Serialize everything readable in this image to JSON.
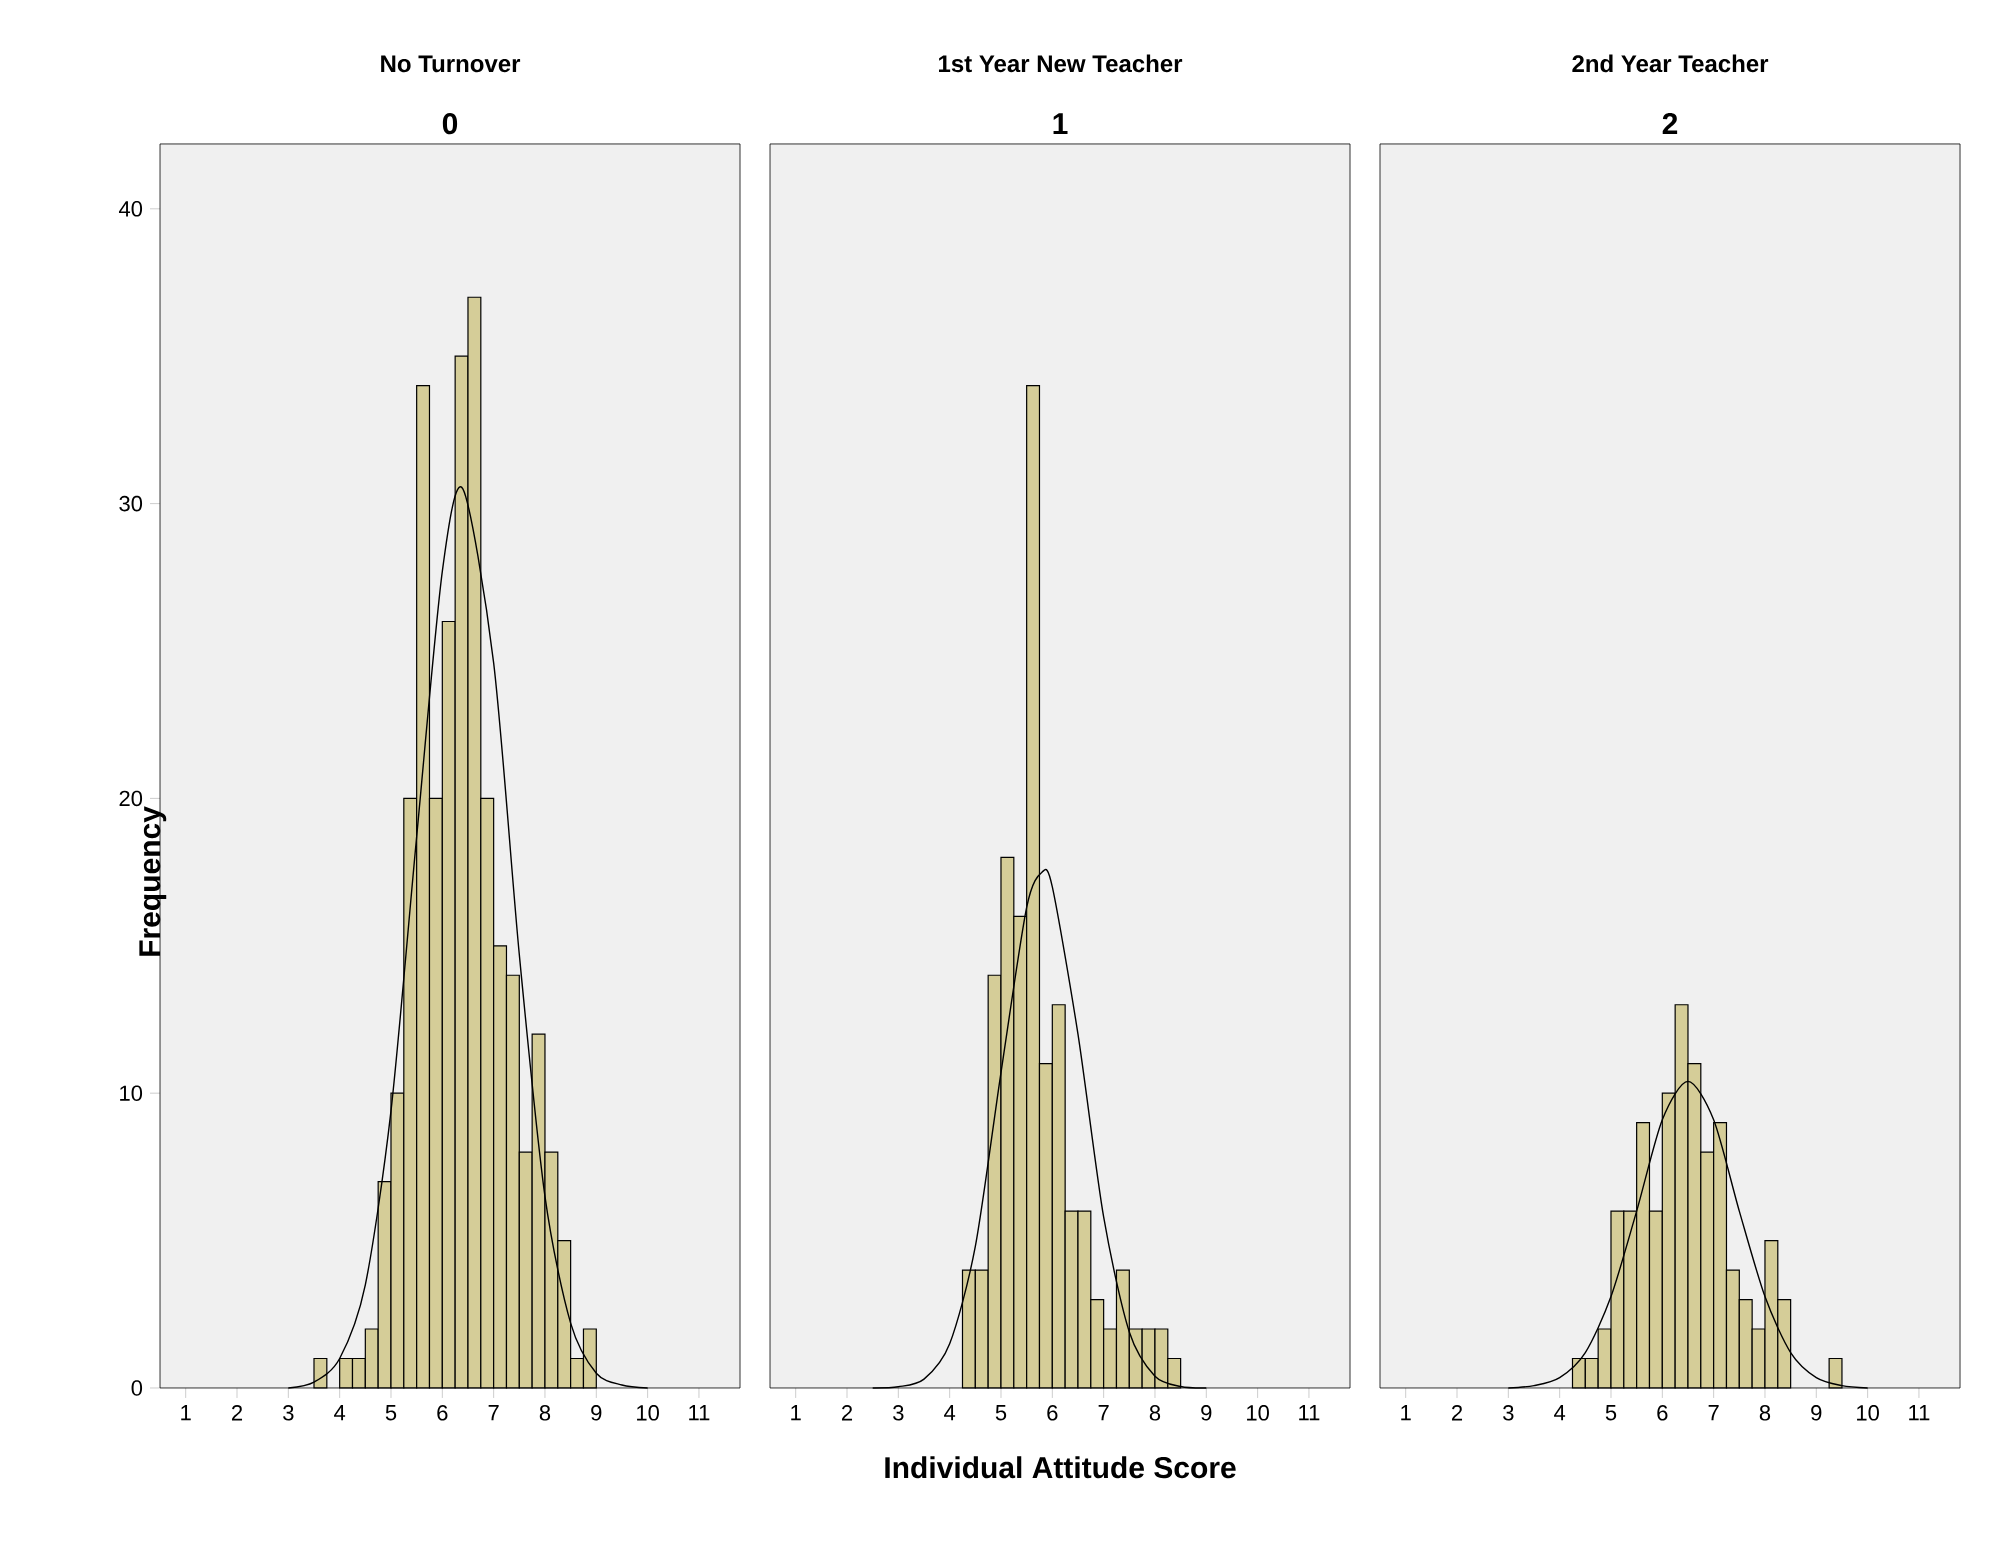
{
  "chart_data": [
    {
      "type": "histogram",
      "title": "No Turnover",
      "subtitle": "0",
      "ylabel": "Frequency",
      "xlim": [
        0.5,
        11.8
      ],
      "ylim": [
        0,
        42.2
      ],
      "xticks": [
        1,
        2,
        3,
        4,
        5,
        6,
        7,
        8,
        9,
        10,
        11
      ],
      "yticks": [
        0,
        10,
        20,
        30,
        40
      ],
      "series": [
        {
          "type": "histogram",
          "color": "#d5cd98",
          "bins": [
            3.5,
            3.75,
            4.0,
            4.25,
            4.5,
            4.75,
            5.0,
            5.25,
            5.5,
            5.75,
            6.0,
            6.25,
            6.5,
            6.75,
            7.0,
            7.25,
            7.5,
            7.75,
            8.0,
            8.25,
            8.5,
            8.75,
            9.0
          ],
          "values": [
            1,
            0,
            1,
            1,
            2,
            7,
            10,
            20,
            34,
            20,
            26,
            35,
            37,
            20,
            15,
            14,
            8,
            12,
            8,
            5,
            1,
            2
          ]
        },
        {
          "type": "line",
          "color": "#000000",
          "x": [
            3.0,
            3.5,
            4.0,
            4.5,
            5.0,
            5.5,
            6.0,
            6.4,
            7.0,
            7.5,
            8.0,
            8.5,
            9.0,
            9.5,
            10.0
          ],
          "values": [
            0.0,
            0.2,
            1.0,
            3.5,
            9.4,
            18.7,
            27.7,
            30.5,
            24.6,
            14.7,
            6.5,
            2.2,
            0.5,
            0.1,
            0.0
          ]
        }
      ]
    },
    {
      "type": "histogram",
      "title": "1st Year New Teacher",
      "subtitle": "1",
      "xlabel": "Individual Attitude Score",
      "xlim": [
        0.5,
        11.8
      ],
      "ylim": [
        0,
        42.2
      ],
      "xticks": [
        1,
        2,
        3,
        4,
        5,
        6,
        7,
        8,
        9,
        10,
        11
      ],
      "tick_labels": "x",
      "series": [
        {
          "type": "histogram",
          "color": "#d5cd98",
          "bins": [
            4.25,
            4.5,
            4.75,
            5.0,
            5.25,
            5.5,
            5.75,
            6.0,
            6.25,
            6.5,
            6.75,
            7.0,
            7.25,
            7.5,
            7.75,
            8.0,
            8.25,
            8.5
          ],
          "values": [
            4,
            4,
            14,
            18,
            16,
            34,
            11,
            13,
            6,
            6,
            3,
            2,
            4,
            2,
            2,
            2,
            1
          ]
        },
        {
          "type": "line",
          "color": "#000000",
          "x": [
            2.5,
            3.0,
            3.5,
            4.0,
            4.5,
            5.0,
            5.5,
            5.8,
            6.0,
            6.5,
            7.0,
            7.5,
            8.0,
            8.5,
            9.0
          ],
          "values": [
            0.0,
            0.04,
            0.3,
            1.5,
            4.8,
            10.7,
            16.3,
            17.5,
            17.0,
            12.0,
            5.8,
            1.9,
            0.4,
            0.05,
            0.0
          ]
        }
      ]
    },
    {
      "type": "histogram",
      "title": "2nd Year Teacher",
      "subtitle": "2",
      "xlim": [
        0.5,
        11.8
      ],
      "ylim": [
        0,
        42.2
      ],
      "xticks": [
        1,
        2,
        3,
        4,
        5,
        6,
        7,
        8,
        9,
        10,
        11
      ],
      "tick_labels": "x",
      "series": [
        {
          "type": "histogram",
          "color": "#d5cd98",
          "bins": [
            4.25,
            4.5,
            4.75,
            5.0,
            5.25,
            5.5,
            5.75,
            6.0,
            6.25,
            6.5,
            6.75,
            7.0,
            7.25,
            7.5,
            7.75,
            8.0,
            8.25,
            8.5,
            8.75,
            9.0,
            9.25,
            9.5
          ],
          "values": [
            1,
            1,
            2,
            6,
            6,
            9,
            6,
            10,
            13,
            11,
            8,
            9,
            4,
            3,
            2,
            5,
            3,
            0,
            0,
            0,
            1
          ]
        },
        {
          "type": "line",
          "color": "#000000",
          "x": [
            3.0,
            3.5,
            4.0,
            4.5,
            5.0,
            5.5,
            6.0,
            6.5,
            7.0,
            7.5,
            8.0,
            8.5,
            9.0,
            9.5,
            10.0
          ],
          "values": [
            0.0,
            0.08,
            0.35,
            1.2,
            3.1,
            6.0,
            9.1,
            10.4,
            9.1,
            6.0,
            3.1,
            1.2,
            0.35,
            0.08,
            0.0
          ]
        }
      ]
    }
  ]
}
